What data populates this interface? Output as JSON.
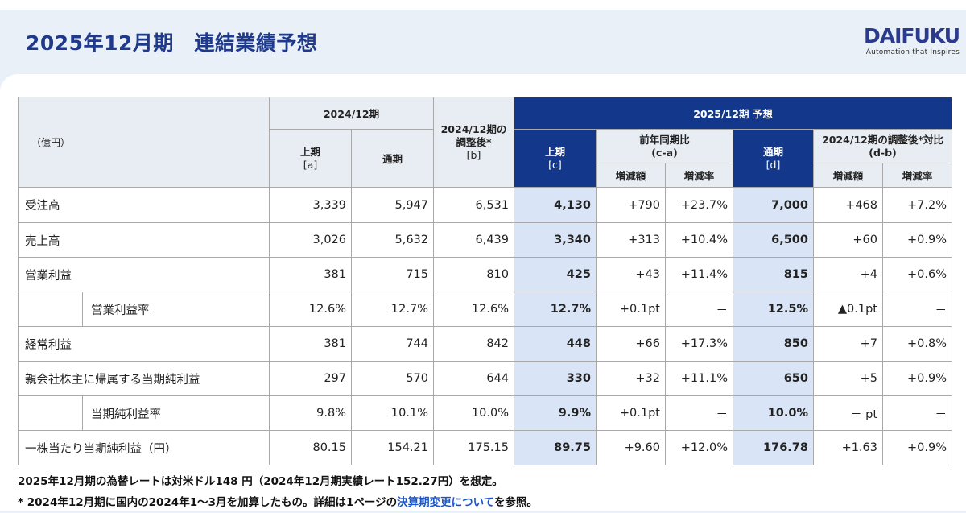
{
  "header": {
    "title": "2025年12月期　連結業績予想",
    "logo_name": "DAIFUKU",
    "logo_tagline": "Automation that Inspires",
    "brand_color": "#2a3a8c"
  },
  "table": {
    "unit_label": "（億円）",
    "group_2024": "2024/12期",
    "col_2024_h1": "上期",
    "col_2024_h1_sub": "[a]",
    "col_2024_full": "通期",
    "col_adjusted_line1": "2024/12期の",
    "col_adjusted_line2": "調整後*",
    "col_adjusted_sub": "[b]",
    "group_2025": "2025/12期 予想",
    "col_2025_h1": "上期",
    "col_2025_h1_sub": "[c]",
    "group_yoy": "前年同期比",
    "group_yoy_sub": "(c-a)",
    "col_2025_full": "通期",
    "col_2025_full_sub": "[d]",
    "group_vs_adj": "2024/12期の調整後*対比",
    "group_vs_adj_sub": "(d-b)",
    "col_change_amt": "増減額",
    "col_change_rate": "増減率",
    "rows": [
      {
        "label": "受注高",
        "a": "3,339",
        "full2024": "5,947",
        "b": "6,531",
        "c": "4,130",
        "ca_amt": "+790",
        "ca_rate": "+23.7%",
        "d": "7,000",
        "db_amt": "+468",
        "db_rate": "+7.2%"
      },
      {
        "label": "売上高",
        "a": "3,026",
        "full2024": "5,632",
        "b": "6,439",
        "c": "3,340",
        "ca_amt": "+313",
        "ca_rate": "+10.4%",
        "d": "6,500",
        "db_amt": "+60",
        "db_rate": "+0.9%"
      },
      {
        "label": "営業利益",
        "a": "381",
        "full2024": "715",
        "b": "810",
        "c": "425",
        "ca_amt": "+43",
        "ca_rate": "+11.4%",
        "d": "815",
        "db_amt": "+4",
        "db_rate": "+0.6%"
      },
      {
        "label": "営業利益率",
        "a": "12.6%",
        "full2024": "12.7%",
        "b": "12.6%",
        "c": "12.7%",
        "ca_amt": "+0.1pt",
        "ca_rate": "－",
        "d": "12.5%",
        "db_amt": "▲0.1pt",
        "db_rate": "－"
      },
      {
        "label": "経常利益",
        "a": "381",
        "full2024": "744",
        "b": "842",
        "c": "448",
        "ca_amt": "+66",
        "ca_rate": "+17.3%",
        "d": "850",
        "db_amt": "+7",
        "db_rate": "+0.8%"
      },
      {
        "label": "親会社株主に帰属する当期純利益",
        "a": "297",
        "full2024": "570",
        "b": "644",
        "c": "330",
        "ca_amt": "+32",
        "ca_rate": "+11.1%",
        "d": "650",
        "db_amt": "+5",
        "db_rate": "+0.9%"
      },
      {
        "label": "当期純利益率",
        "a": "9.8%",
        "full2024": "10.1%",
        "b": "10.0%",
        "c": "9.9%",
        "ca_amt": "+0.1pt",
        "ca_rate": "－",
        "d": "10.0%",
        "db_amt": "－ pt",
        "db_rate": "－"
      },
      {
        "label": "一株当たり当期純利益（円）",
        "a": "80.15",
        "full2024": "154.21",
        "b": "175.15",
        "c": "89.75",
        "ca_amt": "+9.60",
        "ca_rate": "+12.0%",
        "d": "176.78",
        "db_amt": "+1.63",
        "db_rate": "+0.9%"
      }
    ]
  },
  "notes": {
    "line1": "2025年12月期の為替レートは対米ドル148 円（2024年12月期実績レート152.27円）を想定。",
    "line2_before": "* 2024年12月期に国内の2024年1～3月を加算したもの。詳細は1ページの",
    "line2_link": "決算期変更について",
    "line2_after": "を参照。"
  }
}
